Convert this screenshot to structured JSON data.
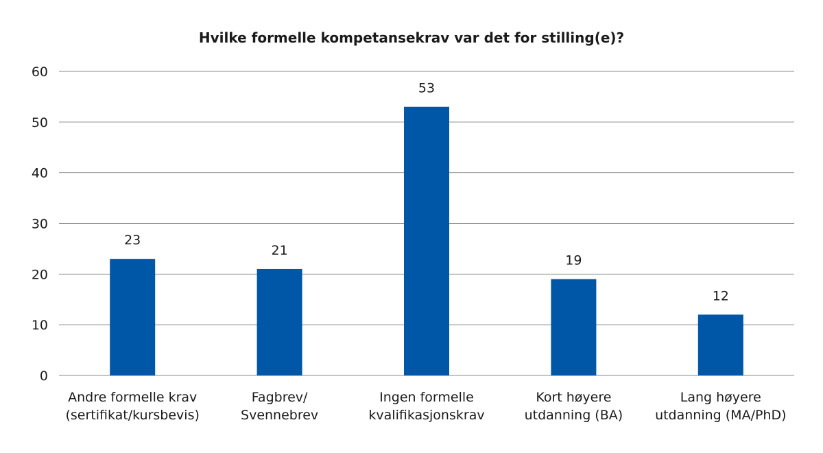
{
  "chart_data": {
    "type": "bar",
    "title": "Hvilke formelle kompetansekrav var det for stilling(e)?",
    "xlabel": "",
    "ylabel": "",
    "categories": [
      [
        "Andre formelle krav",
        "(sertifikat/kursbevis)"
      ],
      [
        "Fagbrev/",
        "Svennebrev"
      ],
      [
        "Ingen formelle",
        "kvalifikasjonskrav"
      ],
      [
        "Kort høyere",
        "utdanning (BA)"
      ],
      [
        "Lang høyere",
        "utdanning (MA/PhD)"
      ]
    ],
    "values": [
      23,
      21,
      53,
      19,
      12
    ],
    "data_labels": [
      "23",
      "21",
      "53",
      "19",
      "12"
    ],
    "ylim": [
      0,
      60
    ],
    "yticks": [
      "0",
      "10",
      "20",
      "30",
      "40",
      "50",
      "60"
    ],
    "grid": true,
    "legend": "none",
    "colors": {
      "bar": "#0057a8",
      "grid": "#8a8a8a"
    }
  }
}
